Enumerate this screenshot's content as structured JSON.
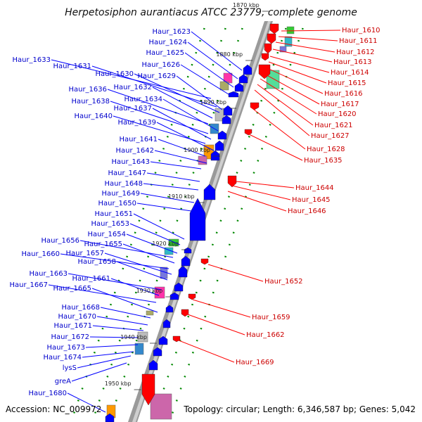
{
  "title": "Herpetosiphon aurantiacus ATCC 23779, complete genome",
  "footer": {
    "accession": "Accession: NC_009972",
    "info": "Topology: circular; Length: 6,346,587 bp; Genes: 5,042"
  },
  "ticks": [
    "1870 kbp",
    "1880 kbp",
    "1890 kbp",
    "1900 kbp",
    "1910 kbp",
    "1920 kbp",
    "1930 kbp",
    "1940 kbp",
    "1950 kbp"
  ],
  "forward_labels": [
    "Haur_1623",
    "Haur_1624",
    "Haur_1625",
    "Haur_1626",
    "Haur_1629",
    "Haur_1633",
    "Haur_1631",
    "Haur_1630",
    "Haur_1632",
    "Haur_1636",
    "Haur_1634",
    "Haur_1638",
    "Haur_1637",
    "Haur_1640",
    "Haur_1639",
    "Haur_1641",
    "Haur_1642",
    "Haur_1643",
    "Haur_1647",
    "Haur_1648",
    "Haur_1649",
    "Haur_1650",
    "Haur_1651",
    "Haur_1653",
    "Haur_1654",
    "Haur_1656",
    "Haur_1655",
    "Haur_1660",
    "Haur_1657",
    "Haur_1658",
    "Haur_1663",
    "Haur_1661",
    "Haur_1667",
    "Haur_1665",
    "Haur_1668",
    "Haur_1670",
    "Haur_1671",
    "Haur_1672",
    "Haur_1673",
    "Haur_1674",
    "lysS",
    "greA",
    "Haur_1680"
  ],
  "reverse_labels": [
    "Haur_1610",
    "Haur_1611",
    "Haur_1612",
    "Haur_1613",
    "Haur_1614",
    "Haur_1615",
    "Haur_1616",
    "Haur_1617",
    "Haur_1620",
    "Haur_1621",
    "Haur_1627",
    "Haur_1628",
    "Haur_1635",
    "Haur_1644",
    "Haur_1645",
    "Haur_1646",
    "Haur_1652",
    "Haur_1659",
    "Haur_1662",
    "Haur_1669"
  ],
  "colors": {
    "forward_gene": "#0000ff",
    "reverse_gene": "#ff0000",
    "backbone": "#999999",
    "green_dash": "#008800",
    "label_fwd": "#0000cc",
    "label_rev": "#cc0000"
  }
}
